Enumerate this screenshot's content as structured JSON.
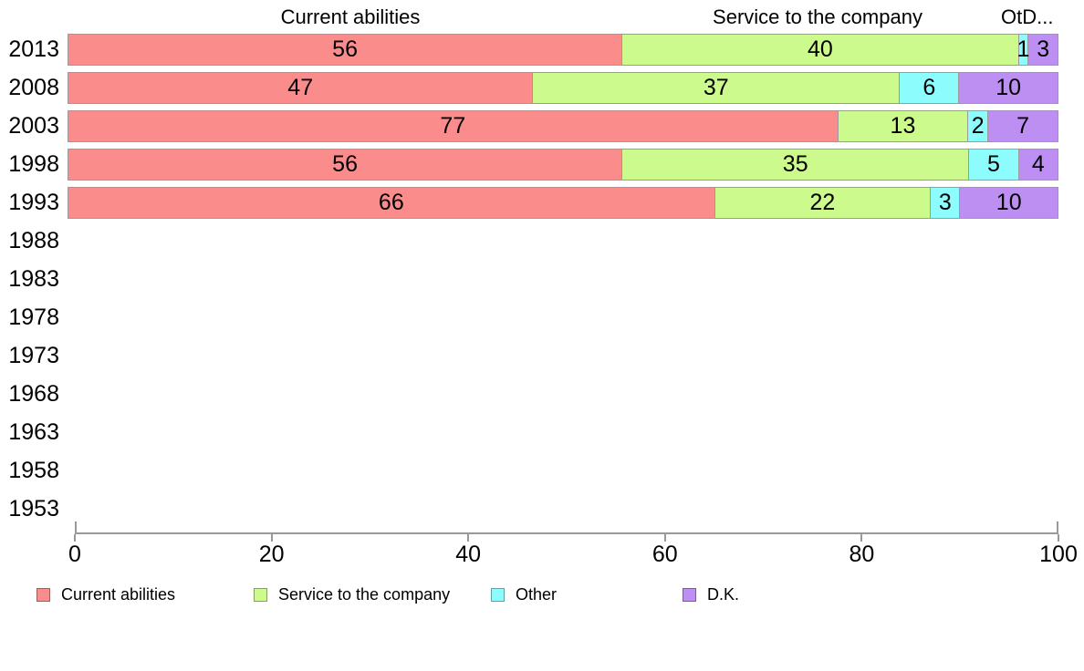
{
  "chart_data": {
    "type": "bar",
    "orientation": "horizontal",
    "stacked": true,
    "title": "",
    "xlabel": "",
    "ylabel": "",
    "xlim": [
      0,
      100
    ],
    "x_ticks": [
      0,
      20,
      40,
      60,
      80,
      100
    ],
    "grid": false,
    "legend_position": "bottom",
    "column_headers": [
      "Current abilities",
      "Service to the company",
      "OtD..."
    ],
    "categories": [
      "2013",
      "2008",
      "2003",
      "1998",
      "1993",
      "1988",
      "1983",
      "1978",
      "1973",
      "1968",
      "1963",
      "1958",
      "1953"
    ],
    "series": [
      {
        "name": "Current abilities",
        "color": "#fb8c8c",
        "values": [
          56,
          47,
          77,
          56,
          66,
          null,
          null,
          null,
          null,
          null,
          null,
          null,
          null
        ]
      },
      {
        "name": "Service to the company",
        "color": "#ccfa8d",
        "values": [
          40,
          37,
          13,
          35,
          22,
          null,
          null,
          null,
          null,
          null,
          null,
          null,
          null
        ]
      },
      {
        "name": "Other",
        "color": "#8dfcfc",
        "values": [
          1,
          6,
          2,
          5,
          3,
          null,
          null,
          null,
          null,
          null,
          null,
          null,
          null
        ]
      },
      {
        "name": "D.K.",
        "color": "#bd8ff2",
        "values": [
          3,
          10,
          7,
          4,
          10,
          null,
          null,
          null,
          null,
          null,
          null,
          null,
          null
        ]
      }
    ],
    "legend": [
      {
        "label": "Current abilities",
        "color": "#fb8c8c"
      },
      {
        "label": "Service to the company",
        "color": "#ccfa8d"
      },
      {
        "label": "Other",
        "color": "#8dfcfc"
      },
      {
        "label": "D.K.",
        "color": "#bd8ff2"
      }
    ],
    "axis_color": "#999999",
    "segment_border_color": "#9b9b9b"
  }
}
